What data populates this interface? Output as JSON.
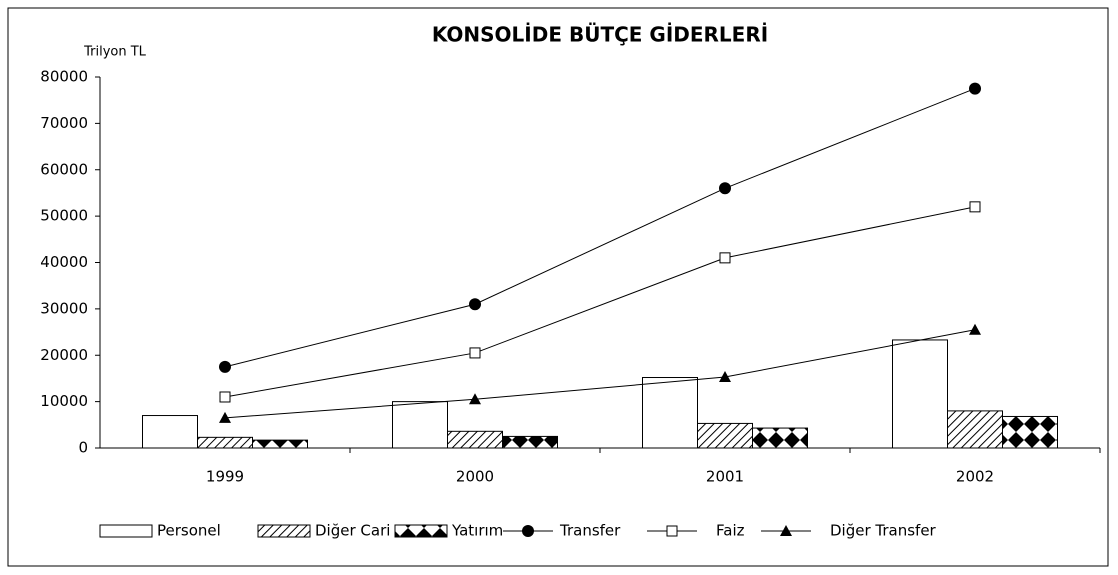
{
  "chart_data": {
    "type": "combo",
    "title": "KONSOLİDE BÜTÇE GİDERLERİ",
    "y_label": "Trilyon TL",
    "categories": [
      "1999",
      "2000",
      "2001",
      "2002"
    ],
    "ylim": [
      0,
      80000
    ],
    "yticks": [
      0,
      10000,
      20000,
      30000,
      40000,
      50000,
      60000,
      70000,
      80000
    ],
    "grid": false,
    "legend": "bottom",
    "series": [
      {
        "name": "Personel",
        "type": "bar",
        "pattern": "none",
        "color": "#000000",
        "values": [
          7000,
          10000,
          15200,
          23300
        ]
      },
      {
        "name": "Diğer Cari",
        "type": "bar",
        "pattern": "hatch",
        "color": "#000000",
        "values": [
          2300,
          3600,
          5300,
          8000
        ]
      },
      {
        "name": "Yatırım",
        "type": "bar",
        "pattern": "diamond",
        "color": "#000000",
        "values": [
          1700,
          2500,
          4300,
          6800
        ]
      },
      {
        "name": "Transfer",
        "type": "line",
        "marker": "circle",
        "color": "#000000",
        "values": [
          17500,
          31000,
          56000,
          77500
        ]
      },
      {
        "name": "Faiz",
        "type": "line",
        "marker": "square",
        "color": "#000000",
        "values": [
          11000,
          20500,
          41000,
          52000
        ]
      },
      {
        "name": "Diğer Transfer",
        "type": "line",
        "marker": "triangle",
        "color": "#000000",
        "values": [
          6500,
          10500,
          15300,
          25500
        ]
      }
    ]
  }
}
